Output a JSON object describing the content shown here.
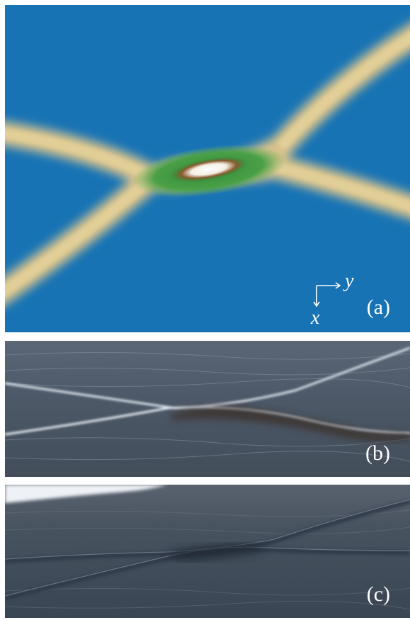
{
  "panels": [
    {
      "id": "a",
      "label": "(a)",
      "kind": "simulation-field"
    },
    {
      "id": "b",
      "label": "(b)",
      "kind": "wave-photo"
    },
    {
      "id": "c",
      "label": "(c)",
      "kind": "wave-photo"
    }
  ],
  "axes": {
    "x_label": "x",
    "y_label": "y"
  },
  "colors": {
    "background_field": "#1773b4",
    "wave_crest": "#d8c38c",
    "interaction_zone": "#2f8a3a",
    "peak_rim": "#7a4a22",
    "peak_core": "#ffffff",
    "water_b": "#4a5563",
    "water_c": "#3e4c5c"
  }
}
